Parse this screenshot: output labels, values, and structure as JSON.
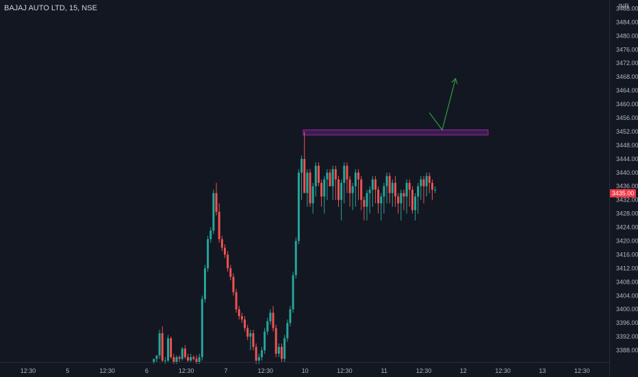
{
  "header": {
    "ticker": "BAJAJ AUTO LTD, 15, NSE",
    "currency": "INR"
  },
  "last_price": {
    "value": 3435,
    "label": "3435.00",
    "color": "#f23645"
  },
  "colors": {
    "up": "#26a69a",
    "down": "#ef5350",
    "zone": "#9c27b0",
    "arrow": "#2e9e3e",
    "background": "#131722"
  },
  "chart_data": {
    "type": "candlestick",
    "title": "",
    "xlabel": "",
    "ylabel": "INR",
    "ylim": [
      3384.6,
      3490.5
    ],
    "y_ticks": [
      "3488.00",
      "3484.00",
      "3480.00",
      "3476.00",
      "3472.00",
      "3468.00",
      "3464.00",
      "3460.00",
      "3456.00",
      "3452.00",
      "3448.00",
      "3444.00",
      "3440.00",
      "3436.00",
      "3432.00",
      "3428.00",
      "3424.00",
      "3420.00",
      "3416.00",
      "3412.00",
      "3408.00",
      "3404.00",
      "3400.00",
      "3396.00",
      "3392.00",
      "3388.00"
    ],
    "x_tick_labels": [
      "12:30",
      "5",
      "12:30",
      "6",
      "12:30",
      "7",
      "12:30",
      "10",
      "12:30",
      "11",
      "12:30",
      "12",
      "12:30",
      "13",
      "12:30"
    ],
    "resistance_zone": {
      "low": 3451.0,
      "high": 3452.5
    },
    "projection_arrow": [
      {
        "bar": 142.0,
        "price": 3457.5
      },
      {
        "bar": 146.5,
        "price": 3452.5
      },
      {
        "bar": 151.2,
        "price": 3467.5
      }
    ],
    "candles": {
      "first_bar": 45,
      "o": [
        3384.5,
        3385.5,
        3386.5,
        3393,
        3385,
        3385,
        3391.5,
        3386,
        3384.5,
        3386,
        3385.5,
        3388.5,
        3386,
        3385,
        3386,
        3385.5,
        3384.5,
        3386,
        3403,
        3412,
        3420.5,
        3423,
        3434,
        3428.5,
        3420.5,
        3418,
        3416,
        3412,
        3409.5,
        3405,
        3400,
        3398,
        3397,
        3394.5,
        3392,
        3393,
        3389,
        3385,
        3386,
        3388,
        3393.5,
        3396.5,
        3399,
        3394.5,
        3387,
        3389,
        3385.5,
        3391.5,
        3396,
        3400,
        3410,
        3420,
        3440,
        3444,
        3434,
        3440,
        3431,
        3436,
        3442,
        3437,
        3433,
        3438,
        3440,
        3436,
        3441,
        3438,
        3432,
        3437,
        3442,
        3438,
        3434,
        3436,
        3440,
        3438,
        3432,
        3430,
        3434,
        3435,
        3438,
        3435,
        3431,
        3433,
        3436,
        3439,
        3434,
        3437,
        3433,
        3431,
        3434,
        3433,
        3437,
        3435,
        3429,
        3433,
        3436,
        3438,
        3436,
        3439,
        3437,
        3435
      ],
      "h": [
        3385.5,
        3386.5,
        3394,
        3395,
        3386,
        3392.5,
        3392,
        3387,
        3386.5,
        3386.5,
        3389,
        3389.5,
        3387,
        3387,
        3386.5,
        3386.5,
        3387,
        3404,
        3413,
        3421.5,
        3424,
        3435,
        3437,
        3431,
        3421.5,
        3419,
        3417,
        3413,
        3410.5,
        3406,
        3401,
        3399,
        3398,
        3395.5,
        3394,
        3394,
        3390,
        3387,
        3389,
        3394.5,
        3397.5,
        3400,
        3401,
        3395.5,
        3390,
        3390,
        3392.5,
        3397,
        3401,
        3411,
        3421,
        3441,
        3445,
        3452,
        3441,
        3441,
        3437,
        3443,
        3443,
        3438,
        3439,
        3441,
        3441,
        3442,
        3442,
        3439,
        3438,
        3443,
        3443,
        3439,
        3437,
        3441,
        3441,
        3439,
        3433,
        3435,
        3436,
        3439,
        3439,
        3436,
        3434,
        3437,
        3440,
        3440,
        3438,
        3439,
        3434,
        3435,
        3435,
        3438,
        3438,
        3436,
        3434,
        3437,
        3439,
        3439,
        3440,
        3440,
        3438,
        3436
      ],
      "l": [
        3384,
        3384.5,
        3385.5,
        3384.5,
        3384,
        3384.5,
        3385.5,
        3384,
        3384,
        3384.5,
        3385,
        3385.5,
        3384.5,
        3384.5,
        3385,
        3384,
        3384,
        3385,
        3402,
        3411,
        3419.5,
        3422,
        3427.5,
        3419.5,
        3417,
        3415,
        3411,
        3408.5,
        3404,
        3399,
        3397,
        3396,
        3393.5,
        3391,
        3388,
        3388,
        3384,
        3384,
        3385,
        3387,
        3392.5,
        3395.5,
        3393.5,
        3386,
        3386,
        3384.5,
        3384.5,
        3390.5,
        3395,
        3399,
        3409,
        3419,
        3432,
        3436,
        3430,
        3430,
        3428,
        3433,
        3436,
        3430,
        3428,
        3432,
        3436,
        3432,
        3432,
        3430,
        3426,
        3431,
        3434,
        3430,
        3429,
        3430,
        3432,
        3429,
        3426,
        3426,
        3428,
        3430,
        3431,
        3428,
        3426,
        3428,
        3431,
        3431,
        3430,
        3430,
        3428,
        3426,
        3429,
        3428,
        3430,
        3428,
        3426,
        3428,
        3432,
        3431,
        3433,
        3434,
        3432,
        3434
      ],
      "c": [
        3385.5,
        3386.5,
        3393,
        3385,
        3385,
        3391.5,
        3386,
        3384.5,
        3386,
        3385.5,
        3388.5,
        3386,
        3385,
        3386,
        3385.5,
        3384.5,
        3386,
        3403,
        3412,
        3420.5,
        3423,
        3434,
        3428.5,
        3420.5,
        3418,
        3416,
        3412,
        3409.5,
        3405,
        3400,
        3398,
        3397,
        3394.5,
        3392,
        3393,
        3389,
        3385,
        3386,
        3388,
        3393.5,
        3396.5,
        3399,
        3394.5,
        3387,
        3389,
        3385.5,
        3391.5,
        3396,
        3400,
        3410,
        3420,
        3440,
        3444,
        3434,
        3440,
        3431,
        3436,
        3442,
        3437,
        3433,
        3438,
        3440,
        3436,
        3441,
        3438,
        3432,
        3437,
        3442,
        3438,
        3434,
        3436,
        3440,
        3438,
        3432,
        3430,
        3434,
        3435,
        3438,
        3435,
        3431,
        3433,
        3436,
        3439,
        3434,
        3437,
        3433,
        3431,
        3434,
        3433,
        3437,
        3435,
        3429,
        3433,
        3436,
        3438,
        3436,
        3439,
        3437,
        3435,
        3435
      ]
    }
  }
}
